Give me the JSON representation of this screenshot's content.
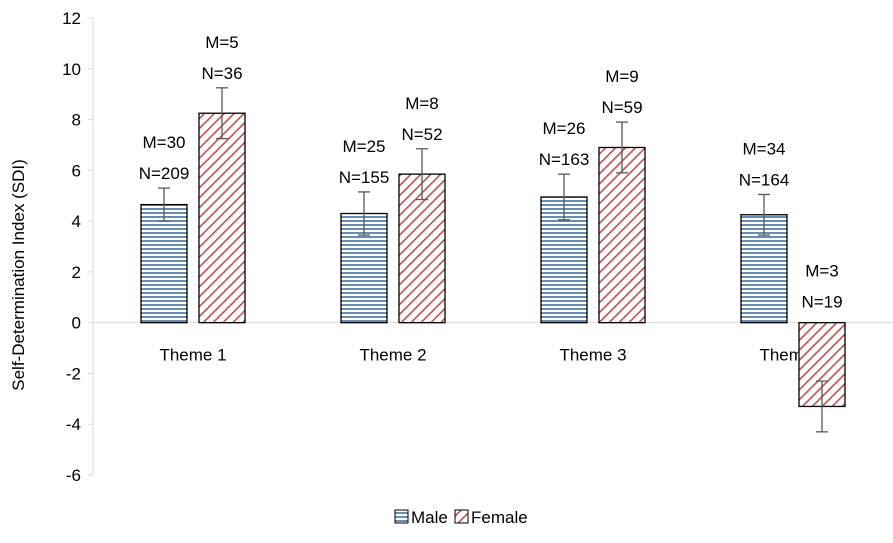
{
  "chart_data": {
    "type": "bar",
    "title": "",
    "xlabel": "",
    "ylabel": "Self-Determination Index (SDI)",
    "ylim": [
      -6,
      12
    ],
    "yticks": [
      12,
      10,
      8,
      6,
      4,
      2,
      0,
      -2,
      -4,
      -6
    ],
    "grid": false,
    "legend_position": "bottom",
    "categories": [
      "Theme 1",
      "Theme 2",
      "Theme 3",
      "Theme 4"
    ],
    "series": [
      {
        "name": "Male",
        "fill": "hatch-horizontal",
        "color": "#41719C",
        "values": [
          4.65,
          4.3,
          4.95,
          4.25
        ],
        "error": [
          0.65,
          0.85,
          0.9,
          0.8
        ],
        "annotations": [
          [
            "M=30",
            "N=209"
          ],
          [
            "M=25",
            "N=155"
          ],
          [
            "M=26",
            "N=163"
          ],
          [
            "M=34",
            "N=164"
          ]
        ]
      },
      {
        "name": "Female",
        "fill": "hatch-diagonal",
        "color": "#C0504D",
        "values": [
          8.25,
          5.85,
          6.9,
          -3.3
        ],
        "error": [
          1.0,
          1.0,
          1.0,
          1.0
        ],
        "annotations": [
          [
            "M=5",
            "N=36"
          ],
          [
            "M=8",
            "N=52"
          ],
          [
            "M=9",
            "N=59"
          ],
          [
            "M=3",
            "N=19"
          ]
        ]
      }
    ]
  }
}
